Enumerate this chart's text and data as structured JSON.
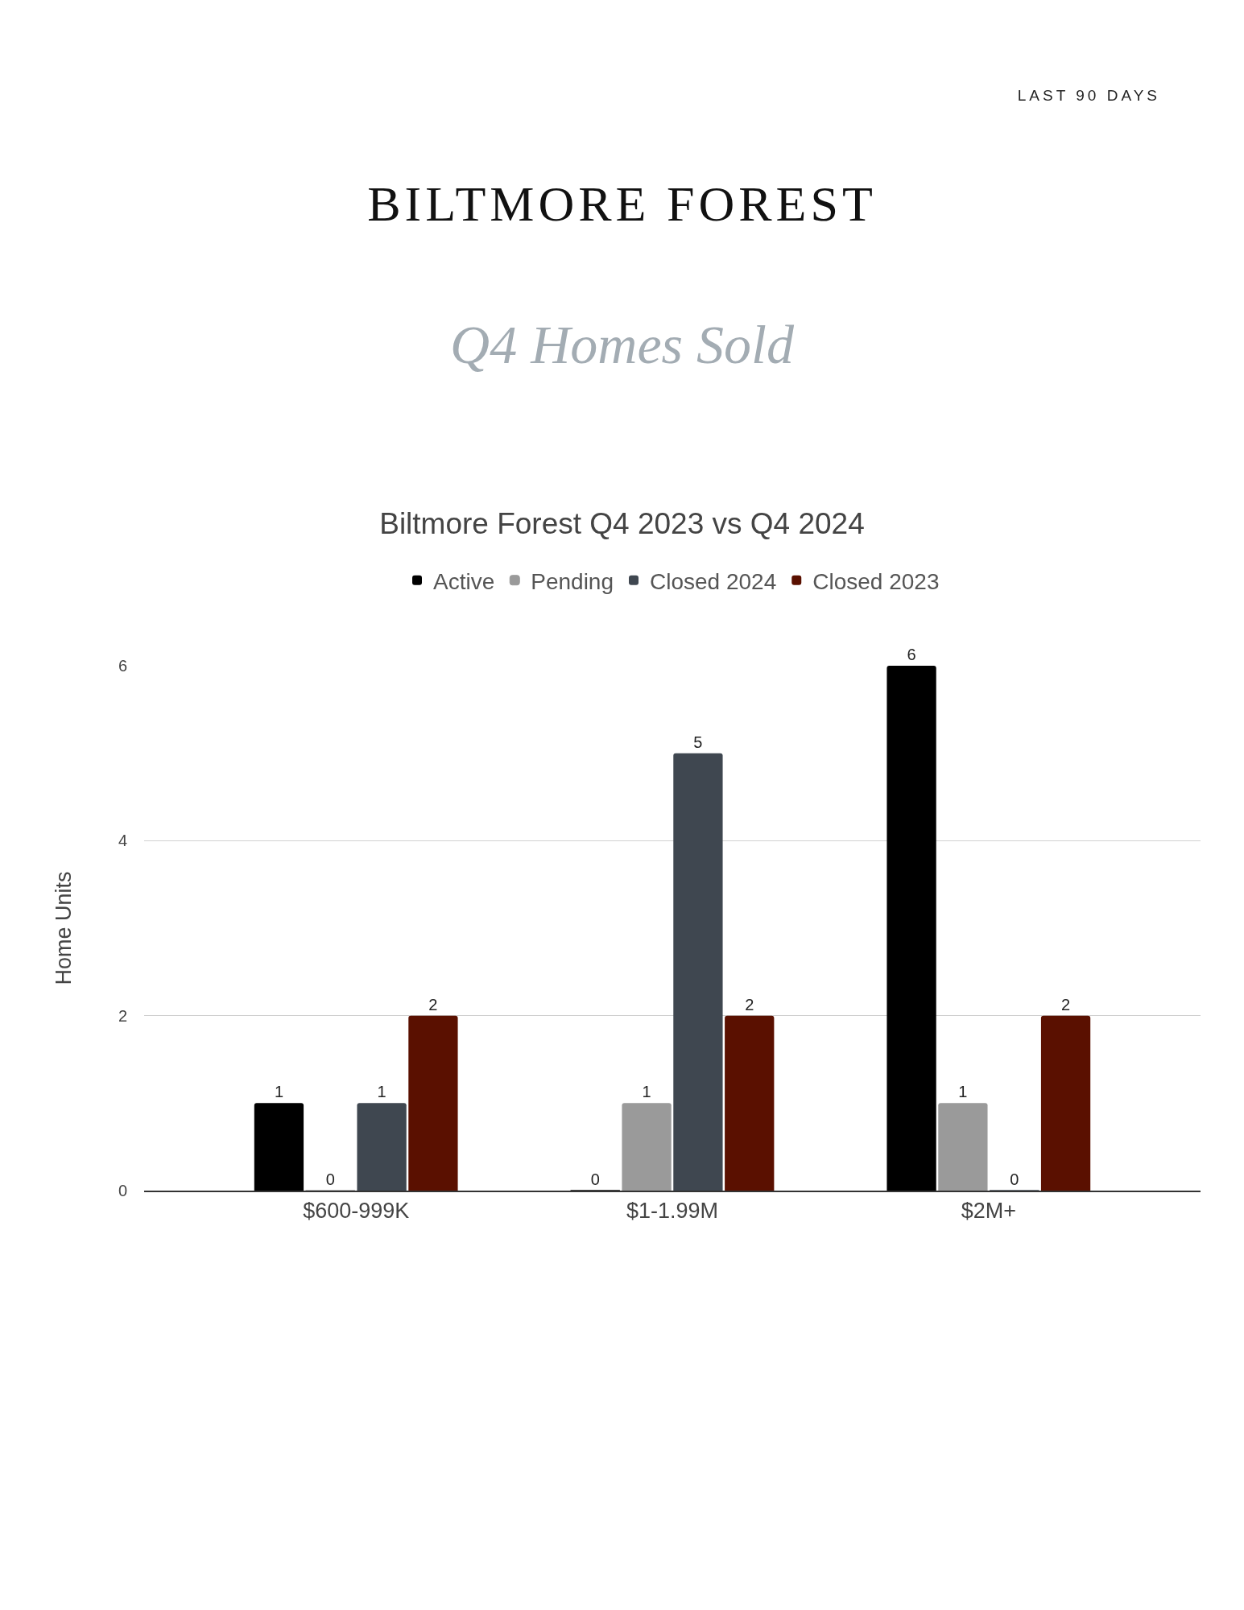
{
  "chart_data": {
    "type": "bar",
    "title": "BILTMORE FOREST",
    "subtitle": "Q4 Homes Sold",
    "annotations": [
      "LAST 90 DAYS",
      "Biltmore Forest Q4 2023 vs Q4 2024"
    ],
    "ylabel": "Home Units",
    "categories": [
      "$600-999K",
      "$1-1.99M",
      "$2M+"
    ],
    "series": [
      {
        "name": "Active",
        "color": "#000000",
        "values": [
          1,
          0,
          6
        ]
      },
      {
        "name": "Pending",
        "color": "#9a9a9a",
        "values": [
          0,
          1,
          1
        ]
      },
      {
        "name": "Closed 2024",
        "color": "#3f4750",
        "values": [
          1,
          5,
          0
        ]
      },
      {
        "name": "Closed 2023",
        "color": "#5a1000",
        "values": [
          2,
          2,
          2
        ]
      }
    ],
    "ylim": [
      0,
      6
    ],
    "yticks": [
      0,
      2,
      4,
      6
    ],
    "grid": "y",
    "legend": "top",
    "data_labels": true
  }
}
